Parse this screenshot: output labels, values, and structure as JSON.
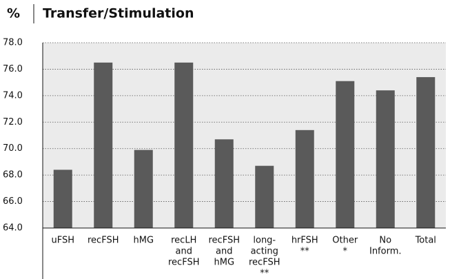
{
  "chart_data": {
    "type": "bar",
    "title": "Transfer/Stimulation",
    "y_label": "%",
    "categories": [
      [
        "uFSH"
      ],
      [
        "recFSH"
      ],
      [
        "hMG"
      ],
      [
        "recLH",
        "and",
        "recFSH"
      ],
      [
        "recFSH",
        "and",
        "hMG"
      ],
      [
        "long-",
        "acting",
        "recFSH",
        "**"
      ],
      [
        "hrFSH",
        "**"
      ],
      [
        "Other",
        "*"
      ],
      [
        "No",
        "Inform."
      ],
      [
        "Total"
      ]
    ],
    "values": [
      68.4,
      76.5,
      69.9,
      76.5,
      70.7,
      68.7,
      71.4,
      75.1,
      74.4,
      75.4
    ],
    "color": "#5a5a5a",
    "ylim": [
      64,
      78
    ],
    "yticks": [
      {
        "value": 64,
        "label": "64.0"
      },
      {
        "value": 66,
        "label": "66.0"
      },
      {
        "value": 68,
        "label": "68.0"
      },
      {
        "value": 70,
        "label": "70.0"
      },
      {
        "value": 72,
        "label": "72.0"
      },
      {
        "value": 74,
        "label": "74.0"
      },
      {
        "value": 76,
        "label": "76.0"
      },
      {
        "value": 78,
        "label": "78.0"
      }
    ],
    "grid": true
  }
}
